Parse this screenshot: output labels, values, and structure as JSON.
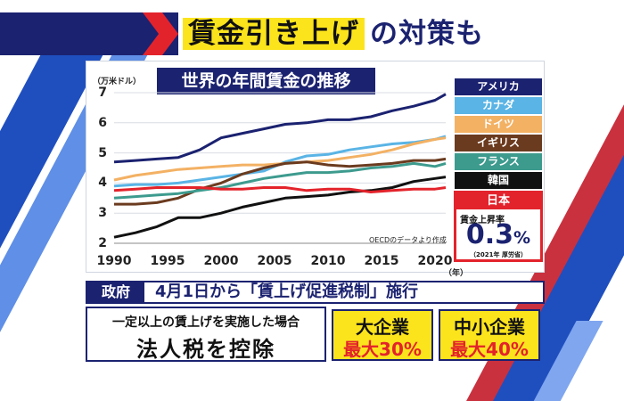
{
  "headline": {
    "highlight": "賃金引き上げ",
    "rest": "の対策も"
  },
  "chart_data": {
    "type": "line",
    "title": "世界の年間賃金の推移",
    "ylabel": "（万米ドル）",
    "xunit": "（年）",
    "ylim": [
      2,
      7
    ],
    "xlim": [
      1990,
      2021
    ],
    "x_ticks": [
      "1990",
      "1995",
      "2000",
      "2005",
      "2010",
      "2015",
      "2020"
    ],
    "y_ticks": [
      "2",
      "3",
      "4",
      "5",
      "6",
      "7"
    ],
    "source": "OECDのデータより作成",
    "series": [
      {
        "name": "アメリカ",
        "color": "#1b2270",
        "x": [
          1990,
          1992,
          1994,
          1996,
          1998,
          2000,
          2002,
          2004,
          2006,
          2008,
          2010,
          2012,
          2014,
          2016,
          2018,
          2020,
          2021
        ],
        "y": [
          4.7,
          4.75,
          4.8,
          4.85,
          5.1,
          5.5,
          5.65,
          5.8,
          5.95,
          6.0,
          6.1,
          6.1,
          6.2,
          6.4,
          6.55,
          6.75,
          6.95
        ]
      },
      {
        "name": "カナダ",
        "color": "#5ab4e5",
        "x": [
          1990,
          1992,
          1994,
          1996,
          1998,
          2000,
          2002,
          2004,
          2006,
          2008,
          2010,
          2012,
          2014,
          2016,
          2018,
          2020,
          2021
        ],
        "y": [
          3.9,
          3.95,
          3.95,
          4.0,
          4.1,
          4.2,
          4.3,
          4.4,
          4.7,
          4.9,
          4.95,
          5.1,
          5.2,
          5.3,
          5.35,
          5.45,
          5.55
        ]
      },
      {
        "name": "ドイツ",
        "color": "#f3b164",
        "x": [
          1990,
          1992,
          1994,
          1996,
          1998,
          2000,
          2002,
          2004,
          2006,
          2008,
          2010,
          2012,
          2014,
          2016,
          2018,
          2020,
          2021
        ],
        "y": [
          4.1,
          4.25,
          4.35,
          4.45,
          4.5,
          4.55,
          4.6,
          4.6,
          4.65,
          4.7,
          4.75,
          4.85,
          4.95,
          5.1,
          5.3,
          5.45,
          5.5
        ]
      },
      {
        "name": "イギリス",
        "color": "#6b3b1f",
        "x": [
          1990,
          1992,
          1994,
          1996,
          1998,
          2000,
          2002,
          2004,
          2006,
          2008,
          2010,
          2012,
          2014,
          2016,
          2018,
          2020,
          2021
        ],
        "y": [
          3.3,
          3.3,
          3.35,
          3.5,
          3.8,
          4.0,
          4.3,
          4.5,
          4.65,
          4.7,
          4.6,
          4.55,
          4.6,
          4.65,
          4.75,
          4.75,
          4.8
        ]
      },
      {
        "name": "フランス",
        "color": "#3d9b8e",
        "x": [
          1990,
          1992,
          1994,
          1996,
          1998,
          2000,
          2002,
          2004,
          2006,
          2008,
          2010,
          2012,
          2014,
          2016,
          2018,
          2020,
          2021
        ],
        "y": [
          3.5,
          3.55,
          3.6,
          3.65,
          3.75,
          3.85,
          4.0,
          4.15,
          4.25,
          4.35,
          4.35,
          4.4,
          4.5,
          4.55,
          4.65,
          4.55,
          4.65
        ]
      },
      {
        "name": "韓国",
        "color": "#111111",
        "x": [
          1990,
          1992,
          1994,
          1996,
          1998,
          2000,
          2002,
          2004,
          2006,
          2008,
          2010,
          2012,
          2014,
          2016,
          2018,
          2020,
          2021
        ],
        "y": [
          2.2,
          2.35,
          2.55,
          2.85,
          2.85,
          3.0,
          3.2,
          3.35,
          3.5,
          3.55,
          3.6,
          3.7,
          3.75,
          3.85,
          4.05,
          4.15,
          4.2
        ]
      },
      {
        "name": "日本",
        "color": "#e3232b",
        "x": [
          1990,
          1992,
          1994,
          1996,
          1998,
          2000,
          2002,
          2004,
          2006,
          2008,
          2010,
          2012,
          2014,
          2016,
          2018,
          2020,
          2021
        ],
        "y": [
          3.75,
          3.8,
          3.85,
          3.85,
          3.85,
          3.8,
          3.8,
          3.85,
          3.85,
          3.75,
          3.8,
          3.8,
          3.7,
          3.75,
          3.8,
          3.8,
          3.85
        ]
      }
    ]
  },
  "japan_box": {
    "label": "日本",
    "rate_label": "賃金上昇率",
    "rate_value": "0.3",
    "rate_unit": "%",
    "note": "（2021年 厚労省）"
  },
  "policy": {
    "tag": "政府",
    "text": "4月1日から「賃上げ促進税制」施行",
    "condition": "一定以上の賃上げを実施した場合",
    "effect": "法人税を控除",
    "large": {
      "title": "大企業",
      "max": "最大30%"
    },
    "sme": {
      "title": "中小企業",
      "max": "最大40%"
    }
  },
  "colors": {
    "navy": "#1b2270",
    "yellow": "#fbe41c",
    "red": "#e3232b",
    "stripe_blue": "#2a5fd4"
  }
}
